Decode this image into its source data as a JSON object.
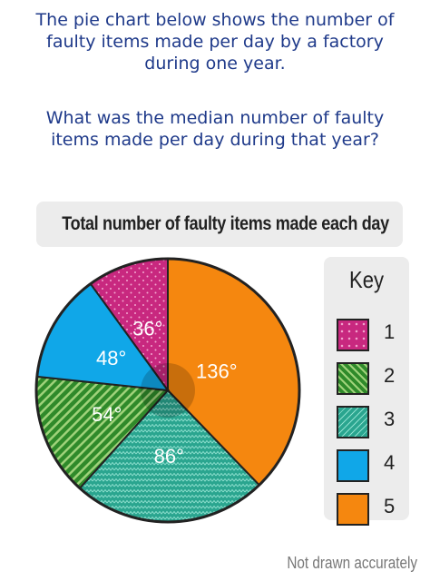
{
  "question": {
    "line1": "The pie chart below shows the number of",
    "line2": "faulty items made per day by a factory",
    "line3": "during one year.",
    "line4": "What was the median number of faulty",
    "line5": "items made per day during that year?"
  },
  "chart_data": {
    "type": "pie",
    "title": "Total number of faulty items made each day",
    "slices": [
      {
        "key": "1",
        "angle_label": "36°",
        "degrees": 36,
        "color": "#c8287f",
        "pattern": "dots"
      },
      {
        "key": "5",
        "angle_label": "136°",
        "degrees": 136,
        "color": "#f5870f",
        "pattern": "solid"
      },
      {
        "key": "3",
        "angle_label": "86°",
        "degrees": 86,
        "color": "#2aa58f",
        "pattern": "zigzag"
      },
      {
        "key": "2",
        "angle_label": "54°",
        "degrees": 54,
        "color": "#2f8a2a",
        "pattern": "stripes"
      },
      {
        "key": "4",
        "angle_label": "48°",
        "degrees": 48,
        "color": "#10a7e8",
        "pattern": "solid"
      }
    ],
    "legend_title": "Key",
    "legend": [
      {
        "label": "1",
        "color": "#c8287f",
        "pattern": "dots"
      },
      {
        "label": "2",
        "color": "#2f8a2a",
        "pattern": "stripes"
      },
      {
        "label": "3",
        "color": "#2aa58f",
        "pattern": "zigzag"
      },
      {
        "label": "4",
        "color": "#10a7e8",
        "pattern": "solid"
      },
      {
        "label": "5",
        "color": "#f5870f",
        "pattern": "solid"
      }
    ],
    "legend_position": "right",
    "footnote": "Not drawn accurately"
  }
}
